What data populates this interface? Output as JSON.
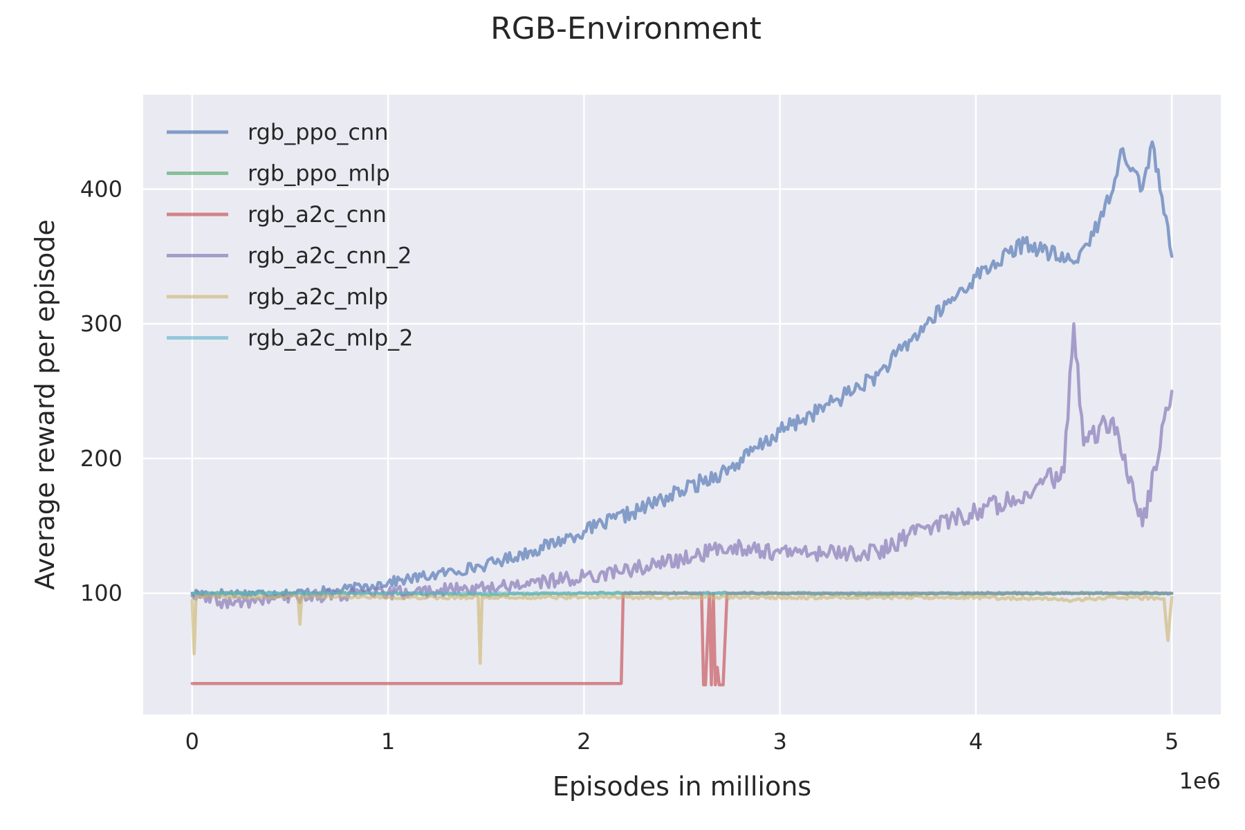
{
  "colors": {
    "background": "#ffffff",
    "plot_background": "#EAEAF2",
    "grid": "#ffffff",
    "text": "#262626"
  },
  "chart_data": {
    "type": "line",
    "title": "RGB-Environment",
    "xlabel": "Episodes in millions",
    "ylabel": "Average reward per episode",
    "x_offset_label": "1e6",
    "xlim": [
      -250000,
      5250000
    ],
    "ylim": [
      10,
      470
    ],
    "x_ticks": [
      0,
      1000000,
      2000000,
      3000000,
      4000000,
      5000000
    ],
    "x_tick_labels": [
      "0",
      "1",
      "2",
      "3",
      "4",
      "5"
    ],
    "y_ticks": [
      100,
      200,
      300,
      400
    ],
    "y_tick_labels": [
      "100",
      "200",
      "300",
      "400"
    ],
    "grid": true,
    "legend_position": "upper-left",
    "series": [
      {
        "name": "rgb_ppo_cnn",
        "color": "#4C72B0",
        "x": [
          0,
          250000,
          500000,
          750000,
          1000000,
          1250000,
          1500000,
          1750000,
          2000000,
          2250000,
          2500000,
          2750000,
          3000000,
          3250000,
          3500000,
          3750000,
          4000000,
          4250000,
          4500000,
          4650000,
          4750000,
          4850000,
          4900000,
          5000000
        ],
        "y": [
          100,
          100,
          100,
          102,
          108,
          114,
          121,
          132,
          146,
          160,
          176,
          193,
          220,
          240,
          262,
          300,
          335,
          360,
          345,
          380,
          430,
          400,
          435,
          350
        ],
        "jitter": 6
      },
      {
        "name": "rgb_ppo_mlp",
        "color": "#55A868",
        "x": [
          0,
          500000,
          1000000,
          1500000,
          2000000,
          2500000,
          3000000,
          3500000,
          4000000,
          4500000,
          5000000
        ],
        "y": [
          100,
          100,
          100,
          99,
          100,
          100,
          100,
          99,
          100,
          100,
          100
        ],
        "jitter": 1.5
      },
      {
        "name": "rgb_a2c_cnn",
        "color": "#C44E52",
        "x": [
          0,
          2190000,
          2200000,
          2600000,
          2610000,
          2620000,
          2640000,
          2650000,
          2660000,
          2670000,
          2680000,
          2690000,
          2710000,
          2730000,
          2740000,
          5000000
        ],
        "y": [
          33,
          33,
          100,
          100,
          32,
          32,
          100,
          32,
          100,
          32,
          45,
          32,
          32,
          100,
          100,
          100
        ],
        "jitter": 0
      },
      {
        "name": "rgb_a2c_cnn_2",
        "color": "#8172B2",
        "x": [
          0,
          200000,
          400000,
          600000,
          800000,
          1000000,
          1250000,
          1500000,
          1750000,
          2000000,
          2250000,
          2500000,
          2750000,
          3000000,
          3250000,
          3500000,
          3750000,
          4000000,
          4250000,
          4450000,
          4500000,
          4550000,
          4700000,
          4850000,
          5000000
        ],
        "y": [
          98,
          92,
          96,
          98,
          99,
          100,
          102,
          104,
          108,
          112,
          118,
          125,
          135,
          130,
          130,
          130,
          150,
          160,
          175,
          190,
          300,
          210,
          230,
          150,
          250
        ],
        "jitter": 8
      },
      {
        "name": "rgb_a2c_mlp",
        "color": "#CCB974",
        "x": [
          0,
          10000,
          20000,
          300000,
          540000,
          550000,
          560000,
          1000000,
          1460000,
          1470000,
          1480000,
          2000000,
          2500000,
          3000000,
          3500000,
          4000000,
          4500000,
          4700000,
          4960000,
          4980000,
          5000000
        ],
        "y": [
          95,
          55,
          98,
          97,
          98,
          77,
          98,
          97,
          97,
          48,
          97,
          97,
          97,
          97,
          97,
          97,
          95,
          97,
          96,
          65,
          97
        ],
        "jitter": 2
      },
      {
        "name": "rgb_a2c_mlp_2",
        "color": "#64B5CD",
        "x": [
          0,
          1000000,
          2000000,
          3000000,
          4000000,
          5000000
        ],
        "y": [
          100,
          100,
          100,
          100,
          100,
          100
        ],
        "jitter": 0.8
      }
    ]
  }
}
